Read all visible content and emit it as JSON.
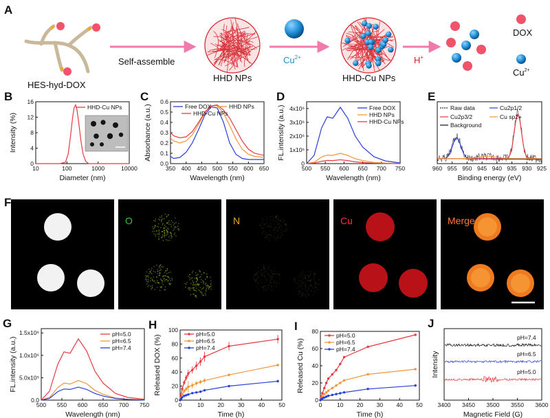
{
  "figure": {
    "panel_labels": [
      "A",
      "B",
      "C",
      "D",
      "E",
      "F",
      "G",
      "H",
      "I",
      "J"
    ]
  },
  "schematic": {
    "step1_label": "HES-hyd-DOX",
    "step1_arrow": "Self-assemble",
    "step2_label": "HHD NPs",
    "step2_arrow": "Cu",
    "step2_arrow_sup": "2+",
    "step3_label": "HHD-Cu NPs",
    "step3_arrow": "H",
    "step3_arrow_sup": "+",
    "legend_dox": "DOX",
    "legend_cu": "Cu",
    "legend_cu_sup": "2+",
    "colors": {
      "dox": "#f0536a",
      "cu": "#1f8fd6",
      "arrow": "#f07bab",
      "polymer": "#c9b99a",
      "sphere": "#d6202a"
    }
  },
  "panel_f": {
    "labels": [
      "",
      "O",
      "N",
      "Cu",
      "Merge"
    ],
    "label_colors": [
      "#ffffff",
      "#3fbf3f",
      "#e8a530",
      "#ff3030",
      "#ff7a30"
    ]
  },
  "chart_data": [
    {
      "id": "B",
      "type": "line",
      "xlabel": "Diameter (nm)",
      "ylabel": "Intensity (%)",
      "xscale": "log",
      "xlim": [
        10,
        10000
      ],
      "ylim": [
        0,
        16
      ],
      "xticks": [
        "10",
        "100",
        "1000",
        "10000"
      ],
      "yticks": [
        "0",
        "4",
        "8",
        "12",
        "16"
      ],
      "legend_position": "top-right",
      "series": [
        {
          "name": "HHD-Cu NPs",
          "color": "#e8393e",
          "x": [
            10,
            60,
            90,
            110,
            130,
            150,
            170,
            190,
            210,
            240,
            280,
            330,
            400,
            500,
            10000
          ],
          "y": [
            0,
            0,
            0.4,
            2.5,
            7,
            11.5,
            14.5,
            15.2,
            14,
            10.5,
            6,
            2.5,
            0.6,
            0,
            0
          ]
        }
      ]
    },
    {
      "id": "C",
      "type": "line",
      "xlabel": "Wavelength (nm)",
      "ylabel": "Absorbance (a.u.)",
      "xlim": [
        350,
        650
      ],
      "ylim": [
        0,
        0.6
      ],
      "xticks": [
        "350",
        "400",
        "450",
        "500",
        "550",
        "600",
        "650"
      ],
      "yticks": [
        "0.0",
        "0.1",
        "0.2",
        "0.3",
        "0.4",
        "0.5",
        "0.6"
      ],
      "legend_position": "top",
      "series": [
        {
          "name": "Free DOX",
          "color": "#2a3ed8",
          "x": [
            350,
            360,
            380,
            400,
            420,
            440,
            460,
            480,
            500,
            520,
            540,
            560,
            580,
            600,
            620,
            650
          ],
          "y": [
            0.07,
            0.05,
            0.06,
            0.11,
            0.2,
            0.33,
            0.47,
            0.55,
            0.54,
            0.4,
            0.2,
            0.09,
            0.05,
            0.04,
            0.04,
            0.04
          ]
        },
        {
          "name": "HHD NPs",
          "color": "#f0963a",
          "x": [
            350,
            360,
            380,
            400,
            420,
            440,
            460,
            480,
            500,
            520,
            540,
            560,
            580,
            600,
            620,
            650
          ],
          "y": [
            0.25,
            0.22,
            0.2,
            0.22,
            0.28,
            0.38,
            0.49,
            0.56,
            0.56,
            0.49,
            0.37,
            0.24,
            0.14,
            0.09,
            0.07,
            0.06
          ]
        },
        {
          "name": "HHD-Cu NPs",
          "color": "#e8393e",
          "x": [
            350,
            360,
            380,
            400,
            420,
            440,
            460,
            480,
            500,
            520,
            540,
            560,
            580,
            600,
            620,
            650
          ],
          "y": [
            0.3,
            0.27,
            0.25,
            0.26,
            0.31,
            0.4,
            0.5,
            0.56,
            0.57,
            0.52,
            0.44,
            0.33,
            0.22,
            0.14,
            0.1,
            0.08
          ]
        }
      ]
    },
    {
      "id": "D",
      "type": "line",
      "xlabel": "Wavelength (nm)",
      "ylabel": "FL.intensity (a.u.)",
      "xlim": [
        500,
        750
      ],
      "ylim": [
        0,
        4500000
      ],
      "xticks": [
        "500",
        "550",
        "600",
        "650",
        "700",
        "750"
      ],
      "yticks": [
        "0",
        "1x10⁶",
        "2x10⁶",
        "3x10⁶",
        "4x10⁶"
      ],
      "legend_position": "top-right",
      "series": [
        {
          "name": "Free DOX",
          "color": "#2a3ed8",
          "x": [
            500,
            520,
            540,
            555,
            570,
            590,
            610,
            630,
            650,
            680,
            710,
            750
          ],
          "y": [
            0,
            600000,
            2600000,
            3400000,
            3300000,
            4100000,
            3300000,
            2000000,
            1200000,
            500000,
            200000,
            50000
          ]
        },
        {
          "name": "HHD NPs",
          "color": "#f0963a",
          "x": [
            500,
            520,
            540,
            555,
            570,
            590,
            610,
            630,
            650,
            680,
            710,
            750
          ],
          "y": [
            0,
            100000,
            480000,
            620000,
            600000,
            750000,
            600000,
            360000,
            220000,
            90000,
            40000,
            10000
          ]
        },
        {
          "name": "HHD-Cu NPs",
          "color": "#e8393e",
          "x": [
            500,
            520,
            540,
            555,
            570,
            590,
            610,
            630,
            650,
            680,
            710,
            750
          ],
          "y": [
            0,
            40000,
            170000,
            230000,
            220000,
            280000,
            220000,
            130000,
            80000,
            30000,
            10000,
            0
          ]
        }
      ]
    },
    {
      "id": "E",
      "type": "line",
      "xlabel": "Binding energy (eV)",
      "xlim": [
        960,
        925
      ],
      "reversed_x": true,
      "xticks": [
        "960",
        "955",
        "950",
        "945",
        "940",
        "935",
        "930",
        "925"
      ],
      "legend_position": "top",
      "legend": [
        "Raw data",
        "Cu2p1/2",
        "Cu2p3/2",
        "Cu sp2+",
        "Background"
      ],
      "series": [
        {
          "name": "Raw data",
          "color": "#333333",
          "center1": 953.5,
          "center2": 933.0,
          "peak1": 0.45,
          "peak2": 0.95
        },
        {
          "name": "Cu2p1/2",
          "color": "#2a3ed8",
          "center": 953.5,
          "peak": 0.42
        },
        {
          "name": "Cu2p3/2",
          "color": "#e8393e",
          "center": 933.0,
          "peak": 0.9
        },
        {
          "name": "Cu sp2+",
          "color": "#f0963a",
          "center": 943.0,
          "peak": 0.05
        },
        {
          "name": "Background",
          "color": "#111111"
        }
      ]
    },
    {
      "id": "G",
      "type": "line",
      "xlabel": "Wavelength (nm)",
      "ylabel": "FL.intensity (a.u.)",
      "xlim": [
        500,
        750
      ],
      "ylim": [
        0,
        1600000
      ],
      "xticks": [
        "500",
        "550",
        "600",
        "650",
        "700",
        "750"
      ],
      "yticks": [
        "0.0",
        "5.0x10⁵",
        "1.0x10⁶",
        "1.5x10⁶"
      ],
      "legend_position": "top-right",
      "series": [
        {
          "name": "pH=5.0",
          "color": "#e8393e",
          "x": [
            500,
            520,
            540,
            555,
            570,
            590,
            610,
            630,
            650,
            680,
            710,
            750
          ],
          "y": [
            0,
            200000,
            800000,
            1080000,
            1050000,
            1370000,
            1100000,
            650000,
            380000,
            150000,
            60000,
            20000
          ]
        },
        {
          "name": "pH=6.5",
          "color": "#f0963a",
          "x": [
            500,
            520,
            540,
            555,
            570,
            590,
            610,
            630,
            650,
            680,
            710,
            750
          ],
          "y": [
            0,
            60000,
            280000,
            380000,
            360000,
            440000,
            370000,
            220000,
            130000,
            50000,
            20000,
            5000
          ]
        },
        {
          "name": "pH=7.4",
          "color": "#2a3ed8",
          "x": [
            500,
            520,
            540,
            555,
            570,
            590,
            610,
            630,
            650,
            680,
            710,
            750
          ],
          "y": [
            0,
            40000,
            190000,
            250000,
            240000,
            290000,
            240000,
            150000,
            90000,
            35000,
            15000,
            5000
          ]
        }
      ]
    },
    {
      "id": "H",
      "type": "line",
      "xlabel": "Time (h)",
      "ylabel": "Released DOX (%)",
      "xlim": [
        0,
        50
      ],
      "ylim": [
        0,
        100
      ],
      "xticks": [
        "0",
        "10",
        "20",
        "30",
        "40",
        "50"
      ],
      "yticks": [
        "0",
        "20",
        "40",
        "60",
        "80",
        "100"
      ],
      "legend_position": "top-left",
      "series": [
        {
          "name": "pH=5.0",
          "color": "#e8393e",
          "x": [
            0,
            0.5,
            1,
            2,
            3,
            4,
            6,
            8,
            10,
            12,
            24,
            48
          ],
          "y": [
            0,
            8,
            16,
            25,
            32,
            38,
            43,
            49,
            55,
            62,
            77,
            87
          ],
          "err": [
            0,
            2,
            3,
            3,
            4,
            5,
            5,
            6,
            6,
            7,
            6,
            6
          ]
        },
        {
          "name": "pH=6.5",
          "color": "#f0963a",
          "x": [
            0,
            0.5,
            1,
            2,
            3,
            4,
            6,
            8,
            10,
            12,
            24,
            48
          ],
          "y": [
            0,
            4,
            8,
            13,
            16,
            19,
            21,
            24,
            26,
            28,
            36,
            50
          ],
          "err": [
            0,
            1,
            2,
            3,
            3,
            8,
            4,
            3,
            3,
            3,
            2,
            2
          ]
        },
        {
          "name": "pH=7.4",
          "color": "#2a3ed8",
          "x": [
            0,
            0.5,
            1,
            2,
            3,
            4,
            6,
            8,
            10,
            12,
            24,
            48
          ],
          "y": [
            0,
            2,
            4,
            6,
            7,
            8,
            10,
            11,
            12,
            14,
            20,
            27
          ],
          "err": [
            0,
            1,
            1,
            1,
            1,
            1,
            1,
            1,
            1,
            1,
            1,
            2
          ]
        }
      ]
    },
    {
      "id": "I",
      "type": "line",
      "xlabel": "Time (h)",
      "ylabel": "Released Cu (%)",
      "xlim": [
        0,
        50
      ],
      "ylim": [
        0,
        80
      ],
      "xticks": [
        "0",
        "10",
        "20",
        "30",
        "40",
        "50"
      ],
      "yticks": [
        "0",
        "20",
        "40",
        "60",
        "80"
      ],
      "legend_position": "top-left",
      "series": [
        {
          "name": "pH=5.0",
          "color": "#e8393e",
          "x": [
            0,
            0.5,
            1,
            2,
            3,
            4,
            6,
            8,
            10,
            12,
            24,
            48
          ],
          "y": [
            0,
            4,
            8,
            14,
            20,
            25,
            30,
            35,
            42,
            50,
            62,
            76
          ]
        },
        {
          "name": "pH=6.5",
          "color": "#f0963a",
          "x": [
            0,
            0.5,
            1,
            2,
            3,
            4,
            6,
            8,
            10,
            12,
            24,
            48
          ],
          "y": [
            0,
            2,
            4,
            7,
            9,
            11,
            14,
            17,
            20,
            23,
            30,
            36
          ]
        },
        {
          "name": "pH=7.4",
          "color": "#2a3ed8",
          "x": [
            0,
            0.5,
            1,
            2,
            3,
            4,
            6,
            8,
            10,
            12,
            24,
            48
          ],
          "y": [
            0,
            1,
            2,
            3,
            4,
            5,
            6,
            7,
            8,
            9,
            13,
            17
          ]
        }
      ]
    },
    {
      "id": "J",
      "type": "line",
      "xlabel": "Magnetic Field (G)",
      "ylabel": "Intensity",
      "xlim": [
        3400,
        3600
      ],
      "xticks": [
        "3400",
        "3450",
        "3500",
        "3550",
        "3600"
      ],
      "series": [
        {
          "name": "pH=7.4",
          "color": "#111111",
          "noise": 0.7
        },
        {
          "name": "pH=6.5",
          "color": "#2a3ed8",
          "noise": 0.5
        },
        {
          "name": "pH=5.0",
          "color": "#e8393e",
          "noise": 0.5
        }
      ]
    }
  ]
}
